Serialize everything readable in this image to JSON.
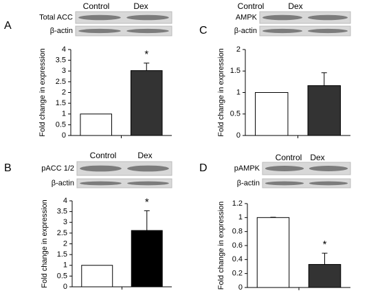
{
  "chart_data": [
    {
      "type": "bar",
      "panel": "A",
      "blot_labels": [
        "Total ACC",
        "β-actin"
      ],
      "categories": [
        "Control",
        "Dex"
      ],
      "values": [
        1,
        3.02
      ],
      "errors": [
        0,
        0.35
      ],
      "colors": [
        "#ffffff",
        "#333333"
      ],
      "ylabel": "Fold change in expression",
      "ylim": [
        0,
        4
      ],
      "yticks": [
        0,
        0.5,
        1,
        1.5,
        2,
        2.5,
        3,
        3.5,
        4
      ],
      "annotation": "*"
    },
    {
      "type": "bar",
      "panel": "B",
      "blot_labels": [
        "pACC 1/2",
        "β-actin"
      ],
      "categories": [
        "Control",
        "Dex"
      ],
      "values": [
        1,
        2.62
      ],
      "errors": [
        0,
        0.92
      ],
      "colors": [
        "#ffffff",
        "#000000"
      ],
      "ylabel": "Fold change in expression",
      "ylim": [
        0,
        4
      ],
      "yticks": [
        0,
        0.5,
        1,
        1.5,
        2,
        2.5,
        3,
        3.5,
        4
      ],
      "annotation": "*"
    },
    {
      "type": "bar",
      "panel": "C",
      "blot_labels": [
        "AMPK",
        "β-actin"
      ],
      "categories": [
        "Control",
        "Dex"
      ],
      "values": [
        1,
        1.16
      ],
      "errors": [
        0,
        0.3
      ],
      "colors": [
        "#ffffff",
        "#333333"
      ],
      "ylabel": "Fold change in expression",
      "ylim": [
        0,
        2
      ],
      "yticks": [
        0,
        0.5,
        1,
        1.5,
        2
      ]
    },
    {
      "type": "bar",
      "panel": "D",
      "blot_labels": [
        "pAMPK",
        "β-actin"
      ],
      "categories": [
        "Control",
        "Dex"
      ],
      "values": [
        1,
        0.33
      ],
      "errors": [
        0.005,
        0.16
      ],
      "colors": [
        "#ffffff",
        "#333333"
      ],
      "ylabel": "Fold change in expression",
      "ylim": [
        0,
        1.2
      ],
      "yticks": [
        0,
        0.2,
        0.4,
        0.6,
        0.8,
        1,
        1.2
      ],
      "annotation": "*"
    }
  ]
}
